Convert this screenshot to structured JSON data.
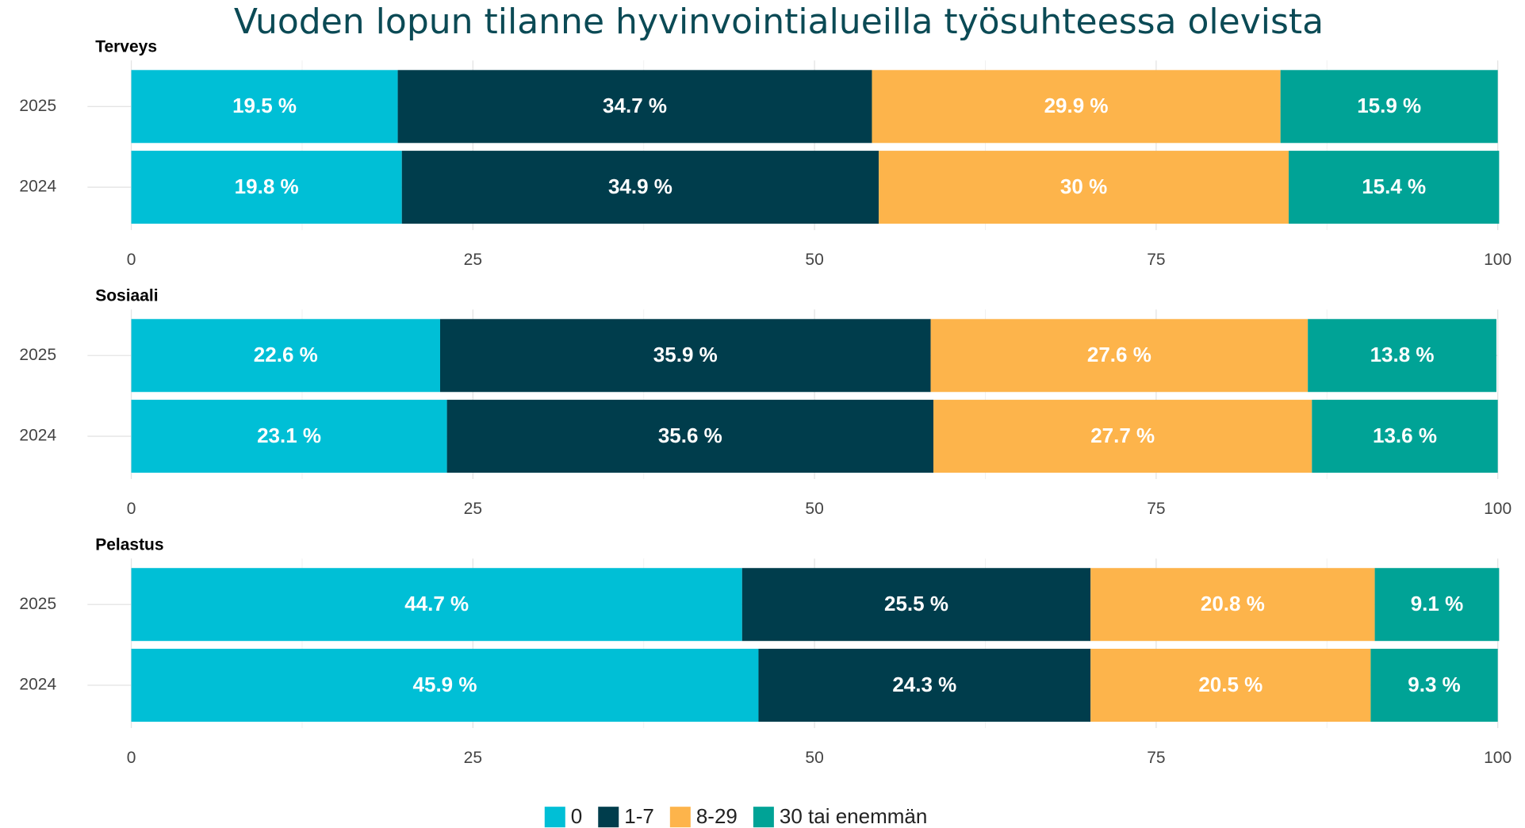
{
  "title": "Vuoden lopun tilanne hyvinvointialueilla työsuhteessa olevista",
  "chart_data": [
    {
      "type": "bar",
      "orientation": "horizontal",
      "stacked": true,
      "title": "Terveys",
      "categories": [
        "2025",
        "2024"
      ],
      "series": [
        {
          "name": "0",
          "color": "#00bfd6",
          "values": [
            19.5,
            19.8
          ],
          "value_labels": [
            "19.5 %",
            "19.8 %"
          ]
        },
        {
          "name": "1-7",
          "color": "#003d4c",
          "values": [
            34.7,
            34.9
          ],
          "value_labels": [
            "34.7 %",
            "34.9 %"
          ]
        },
        {
          "name": "8-29",
          "color": "#fdb44b",
          "values": [
            29.9,
            30
          ],
          "value_labels": [
            "29.9 %",
            "30 %"
          ]
        },
        {
          "name": "30 tai enemmän",
          "color": "#00a396",
          "values": [
            15.9,
            15.4
          ],
          "value_labels": [
            "15.9 %",
            "15.4 %"
          ]
        }
      ],
      "xlim": [
        0,
        100
      ],
      "xticks": [
        0,
        25,
        50,
        75,
        100
      ],
      "minor_xticks": [
        12.5,
        37.5,
        62.5,
        87.5
      ],
      "grid": true
    },
    {
      "type": "bar",
      "orientation": "horizontal",
      "stacked": true,
      "title": "Sosiaali",
      "categories": [
        "2025",
        "2024"
      ],
      "series": [
        {
          "name": "0",
          "color": "#00bfd6",
          "values": [
            22.6,
            23.1
          ],
          "value_labels": [
            "22.6 %",
            "23.1 %"
          ]
        },
        {
          "name": "1-7",
          "color": "#003d4c",
          "values": [
            35.9,
            35.6
          ],
          "value_labels": [
            "35.9 %",
            "35.6 %"
          ]
        },
        {
          "name": "8-29",
          "color": "#fdb44b",
          "values": [
            27.6,
            27.7
          ],
          "value_labels": [
            "27.6 %",
            "27.7 %"
          ]
        },
        {
          "name": "30 tai enemmän",
          "color": "#00a396",
          "values": [
            13.8,
            13.6
          ],
          "value_labels": [
            "13.8 %",
            "13.6 %"
          ]
        }
      ],
      "xlim": [
        0,
        100
      ],
      "xticks": [
        0,
        25,
        50,
        75,
        100
      ],
      "minor_xticks": [
        12.5,
        37.5,
        62.5,
        87.5
      ],
      "grid": true
    },
    {
      "type": "bar",
      "orientation": "horizontal",
      "stacked": true,
      "title": "Pelastus",
      "categories": [
        "2025",
        "2024"
      ],
      "series": [
        {
          "name": "0",
          "color": "#00bfd6",
          "values": [
            44.7,
            45.9
          ],
          "value_labels": [
            "44.7 %",
            "45.9 %"
          ]
        },
        {
          "name": "1-7",
          "color": "#003d4c",
          "values": [
            25.5,
            24.3
          ],
          "value_labels": [
            "25.5 %",
            "24.3 %"
          ]
        },
        {
          "name": "8-29",
          "color": "#fdb44b",
          "values": [
            20.8,
            20.5
          ],
          "value_labels": [
            "20.8 %",
            "20.5 %"
          ]
        },
        {
          "name": "30 tai enemmän",
          "color": "#00a396",
          "values": [
            9.1,
            9.3
          ],
          "value_labels": [
            "9.1 %",
            "9.3 %"
          ]
        }
      ],
      "xlim": [
        0,
        100
      ],
      "xticks": [
        0,
        25,
        50,
        75,
        100
      ],
      "minor_xticks": [
        12.5,
        37.5,
        62.5,
        87.5
      ],
      "grid": true
    }
  ]
}
